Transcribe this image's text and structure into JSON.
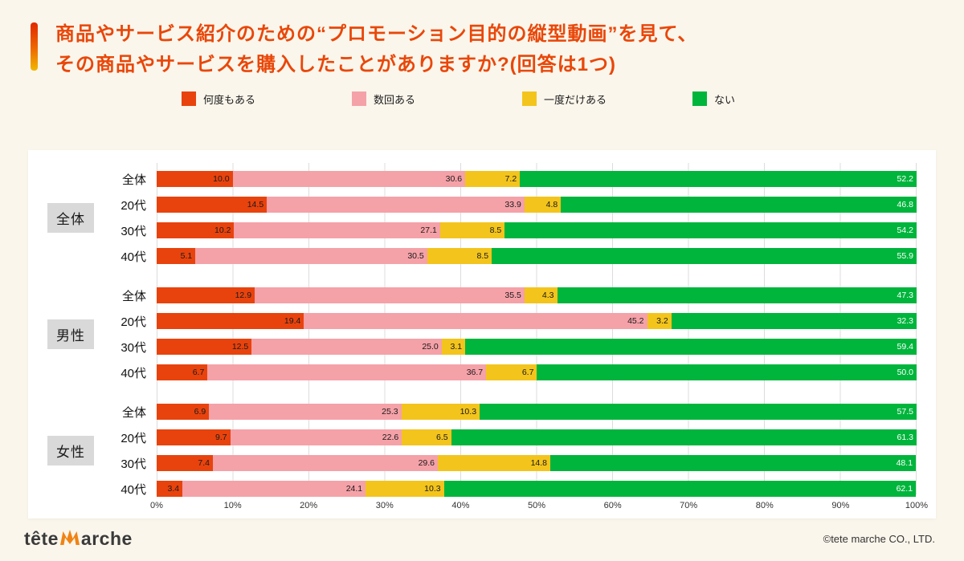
{
  "page": {
    "bg_color": "#fbf6ec",
    "title_color": "#e94709",
    "title_line1": "商品やサービス紹介のための“プロモーション目的の縦型動画”を見て、",
    "title_line2": "その商品やサービスを購入したことがありますか?(回答は1つ)"
  },
  "legend": [
    {
      "label": "何度もある",
      "color": "#e8430d"
    },
    {
      "label": "数回ある",
      "color": "#f5a1a8"
    },
    {
      "label": "一度だけある",
      "color": "#f3c41c"
    },
    {
      "label": "ない",
      "color": "#00b53c"
    }
  ],
  "chart_data": {
    "type": "bar",
    "stacked": true,
    "orientation": "horizontal",
    "grid": true,
    "xlim": [
      0,
      100
    ],
    "x_ticks": [
      "0%",
      "10%",
      "20%",
      "30%",
      "40%",
      "50%",
      "60%",
      "70%",
      "80%",
      "90%",
      "100%"
    ],
    "series_names": [
      "何度もある",
      "数回ある",
      "一度だけある",
      "ない"
    ],
    "series_colors": [
      "#e8430d",
      "#f5a1a8",
      "#f3c41c",
      "#00b53c"
    ],
    "value_text_colors": [
      "#1a1a1a",
      "#1a1a1a",
      "#1a1a1a",
      "#ffffff"
    ],
    "groups": [
      {
        "label": "全体",
        "rows": [
          {
            "label": "全体",
            "values": [
              10.0,
              30.6,
              7.2,
              52.2
            ]
          },
          {
            "label": "20代",
            "values": [
              14.5,
              33.9,
              4.8,
              46.8
            ]
          },
          {
            "label": "30代",
            "values": [
              10.2,
              27.1,
              8.5,
              54.2
            ]
          },
          {
            "label": "40代",
            "values": [
              5.1,
              30.5,
              8.5,
              55.9
            ]
          }
        ]
      },
      {
        "label": "男性",
        "rows": [
          {
            "label": "全体",
            "values": [
              12.9,
              35.5,
              4.3,
              47.3
            ]
          },
          {
            "label": "20代",
            "values": [
              19.4,
              45.2,
              3.2,
              32.3
            ]
          },
          {
            "label": "30代",
            "values": [
              12.5,
              25.0,
              3.1,
              59.4
            ]
          },
          {
            "label": "40代",
            "values": [
              6.7,
              36.7,
              6.7,
              50.0
            ]
          }
        ]
      },
      {
        "label": "女性",
        "rows": [
          {
            "label": "全体",
            "values": [
              6.9,
              25.3,
              10.3,
              57.5
            ]
          },
          {
            "label": "20代",
            "values": [
              9.7,
              22.6,
              6.5,
              61.3
            ]
          },
          {
            "label": "30代",
            "values": [
              7.4,
              29.6,
              14.8,
              48.1
            ]
          },
          {
            "label": "40代",
            "values": [
              3.4,
              24.1,
              10.3,
              62.1
            ]
          }
        ]
      }
    ]
  },
  "footer": {
    "logo_text_left": "tête",
    "logo_text_right": "arche",
    "logo_m_color": "#f08314",
    "copyright": "©tete marche CO., LTD."
  }
}
